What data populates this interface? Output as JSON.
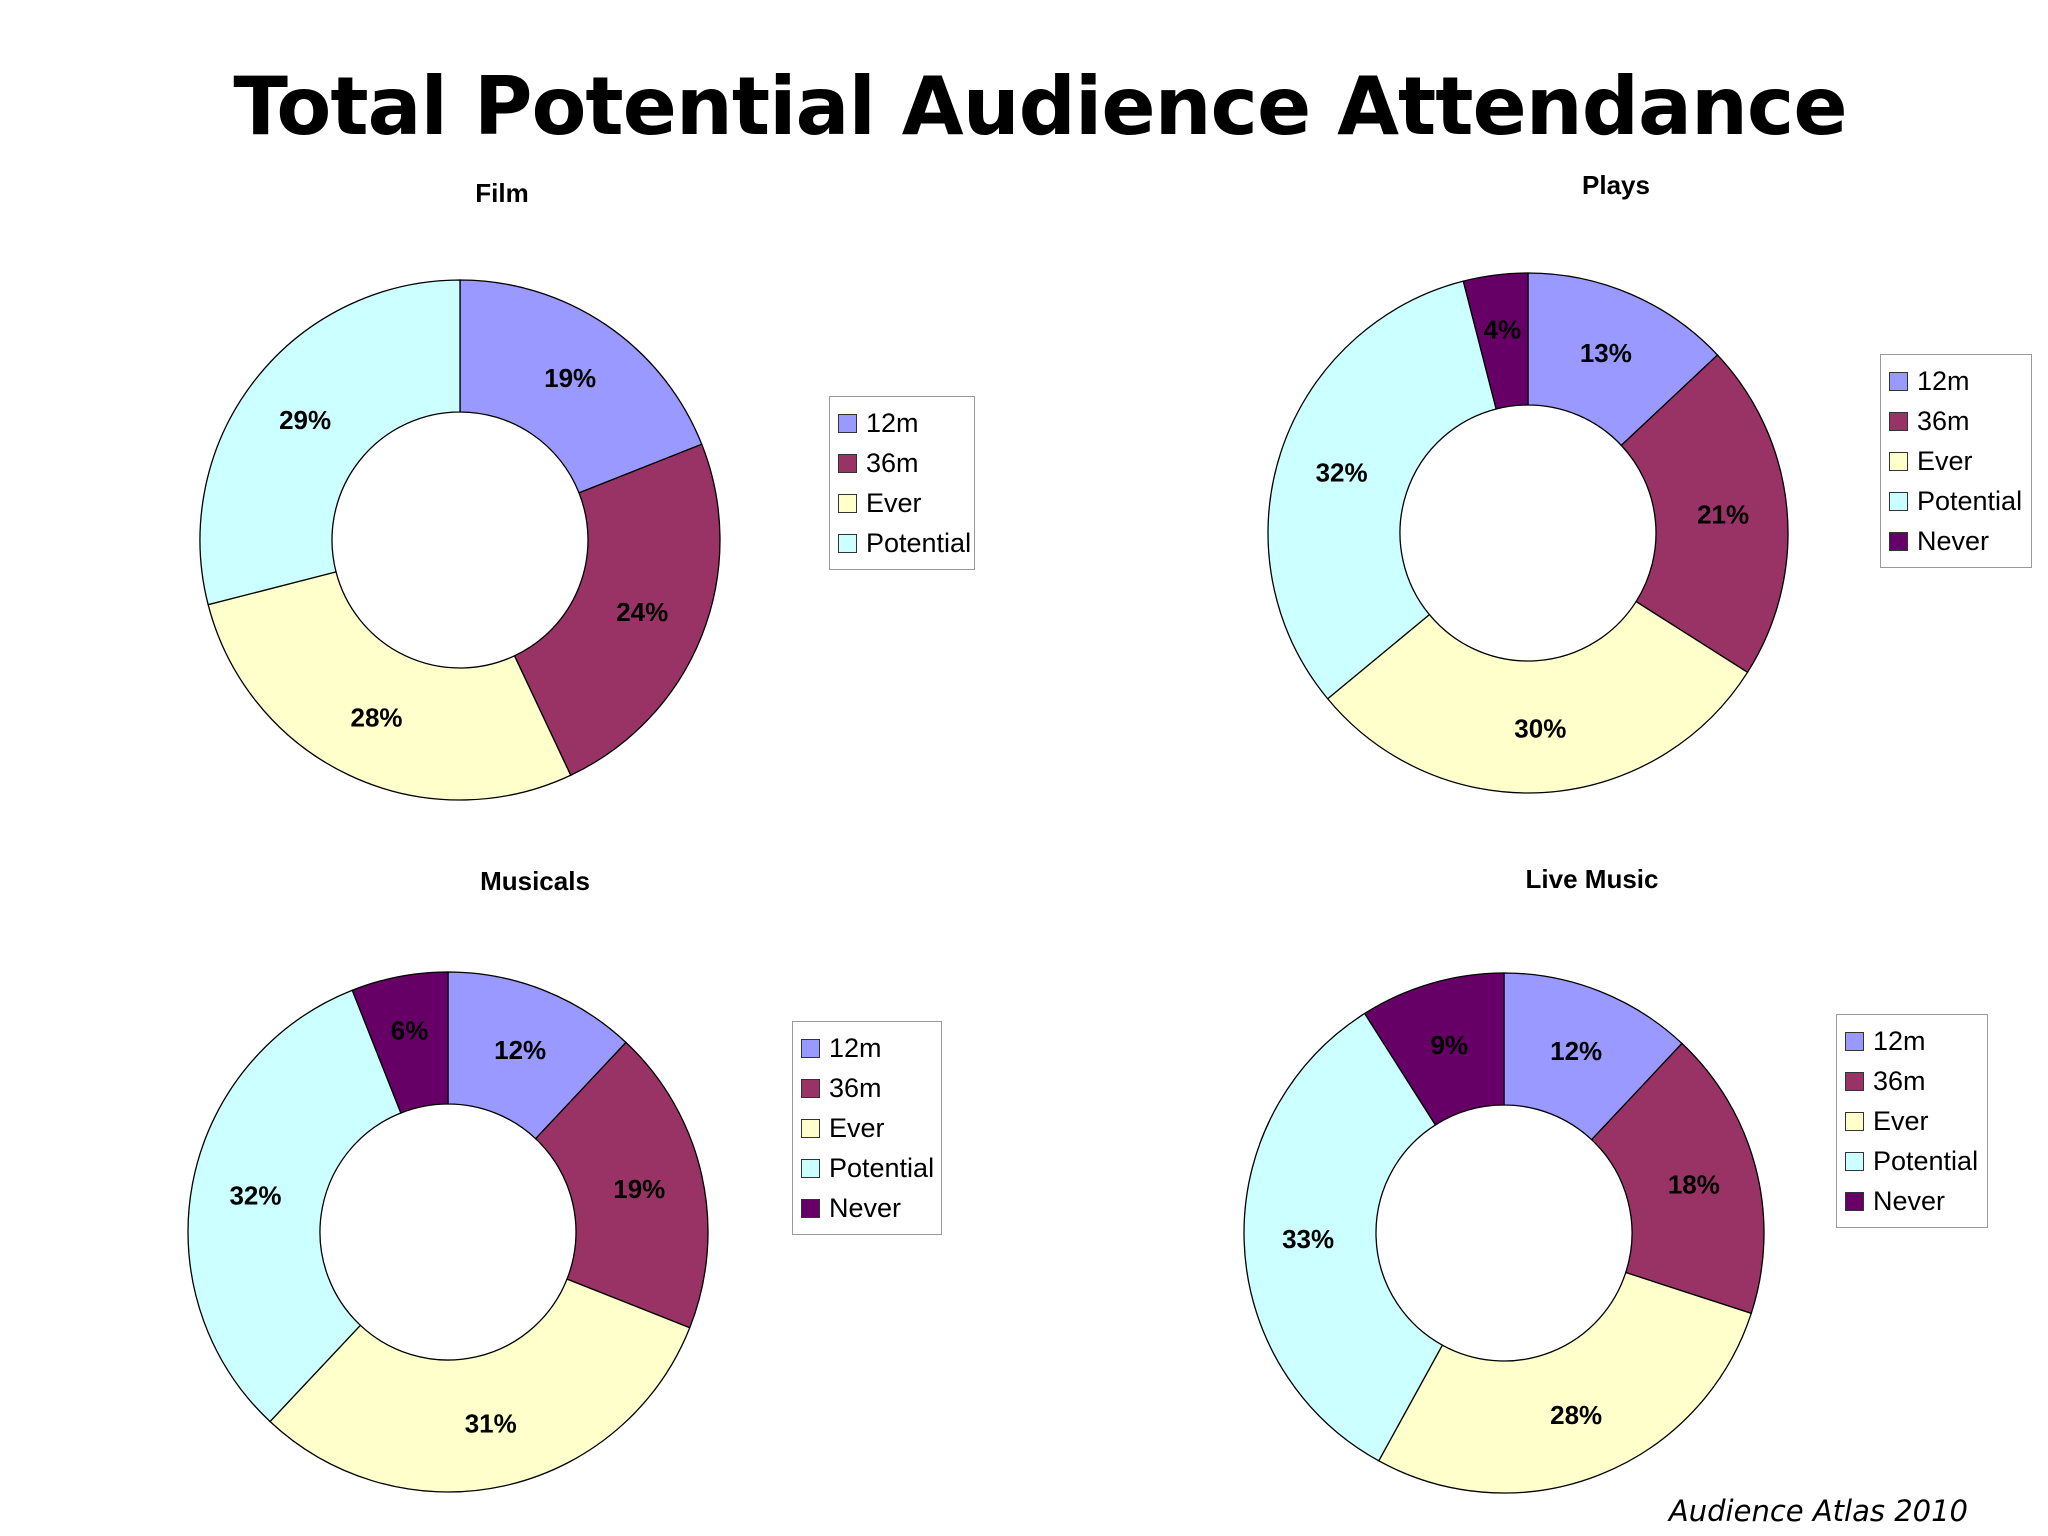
{
  "page": {
    "title": "Total Potential Audience Attendance",
    "footer": "Audience Atlas 2010"
  },
  "colors": {
    "12m": "#9999ff",
    "36m": "#993366",
    "Ever": "#ffffcc",
    "Potential": "#ccffff",
    "Never": "#660066",
    "outline": "#000000"
  },
  "chart_data": [
    {
      "type": "donut",
      "title": "Film",
      "categories": [
        "12m",
        "36m",
        "Ever",
        "Potential"
      ],
      "values": [
        19,
        24,
        28,
        29
      ],
      "labels": [
        "19%",
        "24%",
        "28%",
        "29%"
      ],
      "legend": [
        "12m",
        "36m",
        "Ever",
        "Potential"
      ],
      "legend_position": "right"
    },
    {
      "type": "donut",
      "title": "Plays",
      "categories": [
        "12m",
        "36m",
        "Ever",
        "Potential",
        "Never"
      ],
      "values": [
        13,
        21,
        30,
        32,
        4
      ],
      "labels": [
        "13%",
        "21%",
        "30%",
        "32%",
        "4%"
      ],
      "legend": [
        "12m",
        "36m",
        "Ever",
        "Potential",
        "Never"
      ],
      "legend_position": "right"
    },
    {
      "type": "donut",
      "title": "Musicals",
      "categories": [
        "12m",
        "36m",
        "Ever",
        "Potential",
        "Never"
      ],
      "values": [
        12,
        19,
        31,
        32,
        6
      ],
      "labels": [
        "12%",
        "19%",
        "31%",
        "32%",
        "6%"
      ],
      "legend": [
        "12m",
        "36m",
        "Ever",
        "Potential",
        "Never"
      ],
      "legend_position": "right"
    },
    {
      "type": "donut",
      "title": "Live Music",
      "categories": [
        "12m",
        "36m",
        "Ever",
        "Potential",
        "Never"
      ],
      "values": [
        12,
        18,
        28,
        33,
        9
      ],
      "labels": [
        "12%",
        "18%",
        "28%",
        "33%",
        "9%"
      ],
      "legend": [
        "12m",
        "36m",
        "Ever",
        "Potential",
        "Never"
      ],
      "legend_position": "right"
    }
  ]
}
